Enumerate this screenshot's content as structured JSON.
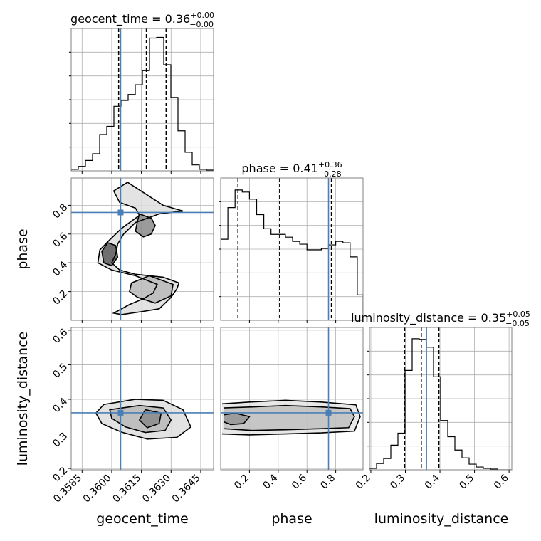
{
  "chart_data": {
    "type": "corner",
    "truth_color": "#4a7fb5",
    "params": [
      {
        "name": "geocent_time",
        "xlabel": "geocent_time",
        "title": {
          "main": "geocent_time = 0.36",
          "sup": "+0.00",
          "sub": "−0.00"
        },
        "range": [
          0.35795,
          0.36515
        ],
        "ticks": [
          0.3585,
          0.36,
          0.3615,
          0.363,
          0.3645
        ],
        "tick_labels": [
          "0.3585",
          "0.3600",
          "0.3615",
          "0.3630",
          "0.3645"
        ],
        "truth": 0.36045,
        "quantiles": [
          0.36035,
          0.36175,
          0.36275
        ],
        "hist_edges": [
          0.35795,
          0.35831,
          0.35867,
          0.35903,
          0.35939,
          0.35975,
          0.36011,
          0.36047,
          0.36083,
          0.36119,
          0.36155,
          0.36191,
          0.36227,
          0.36263,
          0.36299,
          0.36335,
          0.36371,
          0.36407,
          0.36443,
          0.36479,
          0.36515
        ],
        "hist_values": [
          2,
          6,
          14,
          23,
          49,
          60,
          87,
          95,
          103,
          116,
          135,
          179,
          180,
          143,
          99,
          54,
          25,
          8,
          2,
          1
        ]
      },
      {
        "name": "phase",
        "xlabel": "phase",
        "ylabel": "phase",
        "title": {
          "main": "phase = 0.41",
          "sup": "+0.36",
          "sub": "−0.28"
        },
        "range": [
          0.0,
          0.99
        ],
        "ticks": [
          0.2,
          0.4,
          0.6,
          0.8
        ],
        "tick_labels": [
          "0.2",
          "0.4",
          "0.6",
          "0.8"
        ],
        "truth": 0.75,
        "quantiles": [
          0.12,
          0.41,
          0.77
        ],
        "hist_edges": [
          0.0,
          0.05,
          0.1,
          0.15,
          0.2,
          0.25,
          0.3,
          0.35,
          0.4,
          0.45,
          0.5,
          0.55,
          0.6,
          0.65,
          0.7,
          0.75,
          0.8,
          0.85,
          0.9,
          0.95,
          0.99
        ],
        "hist_values": [
          115,
          160,
          185,
          182,
          172,
          150,
          130,
          122,
          122,
          118,
          112,
          108,
          100,
          100,
          102,
          107,
          112,
          110,
          90,
          36
        ]
      },
      {
        "name": "luminosity_distance",
        "xlabel": "luminosity_distance",
        "ylabel": "luminosity_distance",
        "title": {
          "main": "luminosity_distance = 0.35",
          "sup": "+0.05",
          "sub": "−0.05"
        },
        "range": [
          0.196,
          0.608
        ],
        "ticks": [
          0.2,
          0.3,
          0.4,
          0.5,
          0.6
        ],
        "tick_labels": [
          "0.2",
          "0.3",
          "0.4",
          "0.5",
          "0.6"
        ],
        "truth": 0.361,
        "quantiles": [
          0.298,
          0.346,
          0.397
        ],
        "hist_edges": [
          0.196,
          0.2166,
          0.2372,
          0.2578,
          0.2784,
          0.299,
          0.3196,
          0.3402,
          0.3608,
          0.3814,
          0.402,
          0.4226,
          0.4432,
          0.4638,
          0.4844,
          0.505,
          0.5256,
          0.5462,
          0.5668,
          0.5874,
          0.608
        ],
        "hist_values": [
          2,
          9,
          16,
          35,
          52,
          141,
          186,
          185,
          174,
          132,
          70,
          47,
          28,
          17,
          8,
          4,
          2,
          1,
          0,
          0
        ]
      }
    ],
    "y_tick_labels_shown": {
      "phase": [
        "0.2",
        "0.4",
        "0.6",
        "0.8"
      ],
      "luminosity_distance": [
        "0.2",
        "0.3",
        "0.4",
        "0.5",
        "0.6"
      ]
    },
    "grid": true,
    "pairs": [
      {
        "x": "geocent_time",
        "y": "phase",
        "contours": [
          [
            [
              0.3608,
              0.96
            ],
            [
              0.3626,
              0.8
            ],
            [
              0.3636,
              0.76
            ],
            [
              0.3624,
              0.74
            ],
            [
              0.3612,
              0.68
            ],
            [
              0.3606,
              0.6
            ],
            [
              0.3603,
              0.53
            ],
            [
              0.3602,
              0.46
            ],
            [
              0.36,
              0.4
            ],
            [
              0.3604,
              0.35
            ],
            [
              0.3612,
              0.32
            ],
            [
              0.3626,
              0.3
            ],
            [
              0.3634,
              0.26
            ],
            [
              0.3633,
              0.22
            ],
            [
              0.363,
              0.16
            ],
            [
              0.3624,
              0.08
            ],
            [
              0.3615,
              0.06
            ],
            [
              0.3605,
              0.04
            ],
            [
              0.3601,
              0.05
            ],
            [
              0.3609,
              0.11
            ],
            [
              0.3616,
              0.15
            ],
            [
              0.3621,
              0.19
            ],
            [
              0.3623,
              0.25
            ],
            [
              0.3612,
              0.31
            ],
            [
              0.36,
              0.35
            ],
            [
              0.3593,
              0.4
            ],
            [
              0.3594,
              0.49
            ],
            [
              0.3599,
              0.56
            ],
            [
              0.3605,
              0.64
            ],
            [
              0.3614,
              0.73
            ],
            [
              0.3612,
              0.78
            ],
            [
              0.3604,
              0.82
            ],
            [
              0.3601,
              0.9
            ],
            [
              0.3608,
              0.96
            ]
          ],
          [
            [
              0.3613,
              0.16
            ],
            [
              0.3622,
              0.12
            ],
            [
              0.363,
              0.17
            ],
            [
              0.3631,
              0.25
            ],
            [
              0.3619,
              0.31
            ],
            [
              0.361,
              0.26
            ],
            [
              0.3609,
              0.2
            ],
            [
              0.3613,
              0.16
            ]
          ],
          [
            [
              0.3614,
              0.74
            ],
            [
              0.362,
              0.71
            ],
            [
              0.3622,
              0.66
            ],
            [
              0.362,
              0.6
            ],
            [
              0.3616,
              0.58
            ],
            [
              0.3612,
              0.62
            ],
            [
              0.3613,
              0.69
            ],
            [
              0.3614,
              0.74
            ]
          ],
          [
            [
              0.3596,
              0.4
            ],
            [
              0.36,
              0.38
            ],
            [
              0.3603,
              0.44
            ],
            [
              0.3602,
              0.52
            ],
            [
              0.3598,
              0.54
            ],
            [
              0.3595,
              0.48
            ],
            [
              0.3596,
              0.4
            ]
          ]
        ]
      },
      {
        "x": "geocent_time",
        "y": "luminosity_distance",
        "contours": [
          [
            [
              0.3596,
              0.385
            ],
            [
              0.3612,
              0.4
            ],
            [
              0.3626,
              0.397
            ],
            [
              0.3636,
              0.37
            ],
            [
              0.364,
              0.32
            ],
            [
              0.3633,
              0.29
            ],
            [
              0.3618,
              0.285
            ],
            [
              0.3605,
              0.305
            ],
            [
              0.3595,
              0.33
            ],
            [
              0.3592,
              0.36
            ],
            [
              0.3596,
              0.385
            ]
          ],
          [
            [
              0.3599,
              0.37
            ],
            [
              0.3614,
              0.382
            ],
            [
              0.3626,
              0.375
            ],
            [
              0.363,
              0.34
            ],
            [
              0.3627,
              0.31
            ],
            [
              0.3617,
              0.304
            ],
            [
              0.3607,
              0.32
            ],
            [
              0.36,
              0.345
            ],
            [
              0.3599,
              0.37
            ]
          ],
          [
            [
              0.3617,
              0.37
            ],
            [
              0.3625,
              0.36
            ],
            [
              0.3624,
              0.33
            ],
            [
              0.3618,
              0.318
            ],
            [
              0.3614,
              0.34
            ],
            [
              0.3617,
              0.37
            ]
          ]
        ]
      },
      {
        "x": "phase",
        "y": "luminosity_distance",
        "contours": [
          [
            [
              0.01,
              0.387
            ],
            [
              0.2,
              0.392
            ],
            [
              0.45,
              0.397
            ],
            [
              0.7,
              0.392
            ],
            [
              0.94,
              0.384
            ],
            [
              0.97,
              0.35
            ],
            [
              0.93,
              0.308
            ],
            [
              0.7,
              0.303
            ],
            [
              0.45,
              0.3
            ],
            [
              0.2,
              0.297
            ],
            [
              0.01,
              0.3
            ]
          ],
          [
            [
              0.02,
              0.375
            ],
            [
              0.22,
              0.378
            ],
            [
              0.45,
              0.382
            ],
            [
              0.7,
              0.378
            ],
            [
              0.9,
              0.373
            ],
            [
              0.93,
              0.35
            ],
            [
              0.89,
              0.318
            ],
            [
              0.7,
              0.315
            ],
            [
              0.45,
              0.312
            ],
            [
              0.22,
              0.31
            ],
            [
              0.02,
              0.315
            ]
          ],
          [
            [
              0.02,
              0.355
            ],
            [
              0.1,
              0.36
            ],
            [
              0.2,
              0.35
            ],
            [
              0.16,
              0.33
            ],
            [
              0.07,
              0.327
            ],
            [
              0.02,
              0.335
            ]
          ]
        ]
      }
    ]
  }
}
